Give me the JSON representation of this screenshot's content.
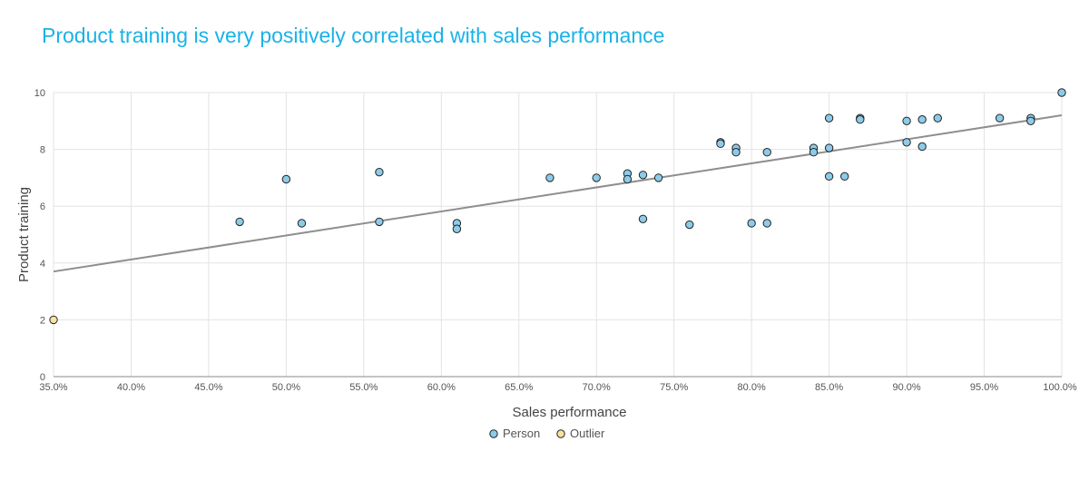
{
  "chart_data": {
    "type": "scatter",
    "title": "Product training is very positively correlated with sales performance",
    "xlabel": "Sales performance",
    "ylabel": "Product training",
    "xlim": [
      35,
      100
    ],
    "ylim": [
      0,
      10
    ],
    "x_ticks": [
      "35.0%",
      "40.0%",
      "45.0%",
      "50.0%",
      "55.0%",
      "60.0%",
      "65.0%",
      "70.0%",
      "75.0%",
      "80.0%",
      "85.0%",
      "90.0%",
      "95.0%",
      "100.0%"
    ],
    "y_ticks": [
      "0",
      "2",
      "4",
      "6",
      "8",
      "10"
    ],
    "grid": true,
    "legend_position": "bottom",
    "trendline": {
      "x": [
        35,
        100
      ],
      "y": [
        3.7,
        9.2
      ]
    },
    "series": [
      {
        "name": "Person",
        "color": "#8ccbea",
        "points": [
          [
            47,
            5.45
          ],
          [
            50,
            6.95
          ],
          [
            51,
            5.4
          ],
          [
            56,
            7.2
          ],
          [
            56,
            5.45
          ],
          [
            61,
            5.4
          ],
          [
            61,
            5.2
          ],
          [
            67,
            7.0
          ],
          [
            70,
            7.0
          ],
          [
            72,
            7.15
          ],
          [
            72,
            6.95
          ],
          [
            73,
            7.1
          ],
          [
            73,
            5.55
          ],
          [
            74,
            7.0
          ],
          [
            76,
            5.35
          ],
          [
            78,
            8.25
          ],
          [
            78,
            8.2
          ],
          [
            79,
            8.05
          ],
          [
            79,
            7.9
          ],
          [
            80,
            5.4
          ],
          [
            81,
            5.4
          ],
          [
            81,
            7.9
          ],
          [
            84,
            8.05
          ],
          [
            84,
            7.9
          ],
          [
            85,
            9.1
          ],
          [
            85,
            8.05
          ],
          [
            85,
            7.05
          ],
          [
            86,
            7.05
          ],
          [
            87,
            9.1
          ],
          [
            87,
            9.05
          ],
          [
            90,
            9.0
          ],
          [
            90,
            8.25
          ],
          [
            91,
            9.05
          ],
          [
            91,
            8.1
          ],
          [
            92,
            9.1
          ],
          [
            96,
            9.1
          ],
          [
            98,
            9.1
          ],
          [
            98,
            9.0
          ],
          [
            100,
            10.0
          ]
        ]
      },
      {
        "name": "Outlier",
        "color": "#f7e3a1",
        "points": [
          [
            35,
            2.0
          ]
        ]
      }
    ]
  }
}
